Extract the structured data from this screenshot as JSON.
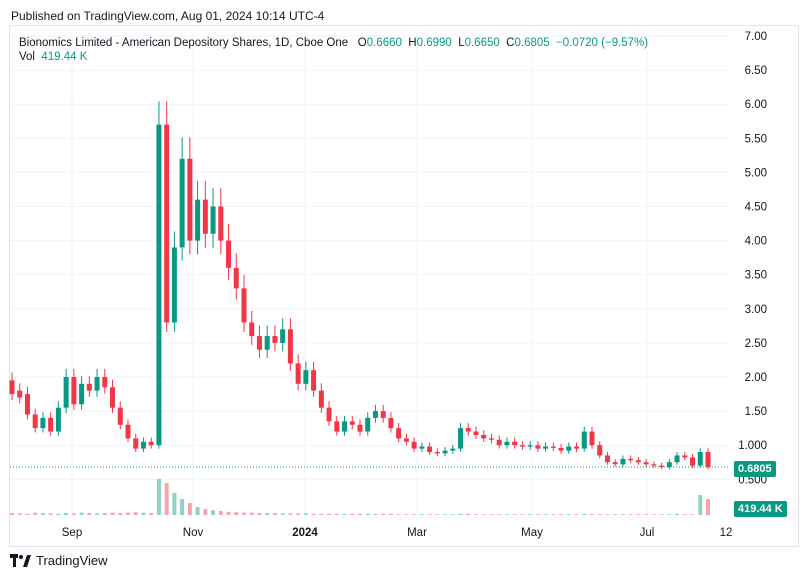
{
  "header": {
    "published": "Published on TradingView.com, Aug 01, 2024 10:14 UTC-4"
  },
  "legend": {
    "symbol": "Bionomics Limited - American Depository Shares, 1D, Cboe One",
    "o_label": "O",
    "o_value": "0.6660",
    "h_label": "H",
    "h_value": "0.6990",
    "l_label": "L",
    "l_value": "0.6650",
    "c_label": "C",
    "c_value": "0.6805",
    "change": "−0.0720 (−9.57%)",
    "vol_label": "Vol",
    "vol_value": "419.44 K"
  },
  "price_tag": "0.6805",
  "volume_tag": "419.44 K",
  "footer": {
    "brand": "TradingView"
  },
  "colors": {
    "up": "#089981",
    "down": "#f23645",
    "grid": "#f0f3fa",
    "last_price_line": "#089981"
  },
  "chart_data": {
    "type": "candlestick",
    "title": "Bionomics Limited - American Depository Shares, 1D, Cboe One",
    "y_ticks": [
      "7.00",
      "6.50",
      "6.00",
      "5.50",
      "5.00",
      "4.50",
      "4.00",
      "3.50",
      "3.00",
      "2.50",
      "2.00",
      "1.50",
      "1.000",
      "0.500"
    ],
    "ylim": [
      0.0,
      7.0
    ],
    "x_ticks": [
      "Sep",
      "Nov",
      "2024",
      "Mar",
      "May",
      "Jul",
      "12"
    ],
    "last_price": 0.6805,
    "grid": true,
    "series": [
      {
        "name": "Price",
        "segments": [
          [
            1.95,
            1.75
          ],
          [
            1.8,
            1.7
          ],
          [
            1.75,
            1.45
          ],
          [
            1.45,
            1.25
          ],
          [
            1.25,
            1.4
          ],
          [
            1.4,
            1.2
          ],
          [
            1.2,
            1.55
          ],
          [
            1.55,
            2.0
          ],
          [
            2.0,
            1.6
          ],
          [
            1.6,
            1.9
          ],
          [
            1.9,
            1.8
          ],
          [
            1.8,
            2.0
          ],
          [
            2.0,
            1.85
          ],
          [
            1.85,
            1.55
          ],
          [
            1.55,
            1.3
          ],
          [
            1.3,
            1.1
          ],
          [
            1.1,
            0.95
          ],
          [
            0.95,
            1.05
          ],
          [
            1.05,
            1.0
          ],
          [
            1.0,
            5.7
          ],
          [
            5.7,
            2.8
          ],
          [
            2.8,
            3.9
          ],
          [
            3.9,
            5.2
          ],
          [
            5.2,
            4.0
          ],
          [
            4.0,
            4.6
          ],
          [
            4.6,
            4.1
          ],
          [
            4.1,
            4.5
          ],
          [
            4.5,
            4.0
          ],
          [
            4.0,
            3.6
          ],
          [
            3.6,
            3.3
          ],
          [
            3.3,
            2.8
          ],
          [
            2.8,
            2.6
          ],
          [
            2.6,
            2.4
          ],
          [
            2.4,
            2.6
          ],
          [
            2.6,
            2.5
          ],
          [
            2.5,
            2.7
          ],
          [
            2.7,
            2.2
          ],
          [
            2.2,
            1.9
          ],
          [
            1.9,
            2.1
          ],
          [
            2.1,
            1.8
          ],
          [
            1.8,
            1.55
          ],
          [
            1.55,
            1.35
          ],
          [
            1.35,
            1.2
          ],
          [
            1.2,
            1.35
          ],
          [
            1.35,
            1.3
          ],
          [
            1.3,
            1.2
          ],
          [
            1.2,
            1.4
          ],
          [
            1.4,
            1.5
          ],
          [
            1.5,
            1.4
          ],
          [
            1.4,
            1.25
          ],
          [
            1.25,
            1.1
          ],
          [
            1.1,
            1.05
          ],
          [
            1.05,
            0.95
          ],
          [
            0.95,
            0.98
          ],
          [
            0.98,
            0.9
          ],
          [
            0.9,
            0.88
          ],
          [
            0.88,
            0.92
          ],
          [
            0.92,
            0.95
          ],
          [
            0.95,
            1.25
          ],
          [
            1.25,
            1.2
          ],
          [
            1.2,
            1.15
          ],
          [
            1.15,
            1.1
          ],
          [
            1.1,
            1.08
          ],
          [
            1.08,
            1.0
          ],
          [
            1.0,
            1.05
          ],
          [
            1.05,
            1.0
          ],
          [
            1.0,
            0.98
          ],
          [
            0.98,
            1.0
          ],
          [
            1.0,
            0.95
          ],
          [
            0.95,
            0.98
          ],
          [
            0.98,
            0.96
          ],
          [
            0.96,
            0.92
          ],
          [
            0.92,
            0.98
          ],
          [
            0.98,
            0.95
          ],
          [
            0.95,
            1.2
          ],
          [
            1.2,
            1.0
          ],
          [
            1.0,
            0.85
          ],
          [
            0.85,
            0.75
          ],
          [
            0.75,
            0.72
          ],
          [
            0.72,
            0.8
          ],
          [
            0.8,
            0.78
          ],
          [
            0.78,
            0.75
          ],
          [
            0.75,
            0.72
          ],
          [
            0.72,
            0.7
          ],
          [
            0.7,
            0.68
          ],
          [
            0.68,
            0.75
          ],
          [
            0.75,
            0.85
          ],
          [
            0.85,
            0.82
          ],
          [
            0.82,
            0.7
          ],
          [
            0.7,
            0.9
          ],
          [
            0.9,
            0.68
          ]
        ]
      },
      {
        "name": "Volume",
        "values": [
          0.05,
          0.04,
          0.03,
          0.06,
          0.05,
          0.04,
          0.03,
          0.05,
          0.04,
          0.06,
          0.05,
          0.04,
          0.05,
          0.06,
          0.05,
          0.06,
          0.07,
          0.06,
          0.05,
          0.9,
          0.8,
          0.55,
          0.4,
          0.3,
          0.2,
          0.15,
          0.12,
          0.1,
          0.08,
          0.07,
          0.06,
          0.06,
          0.05,
          0.05,
          0.05,
          0.04,
          0.04,
          0.04,
          0.04,
          0.03,
          0.03,
          0.03,
          0.03,
          0.03,
          0.03,
          0.03,
          0.03,
          0.03,
          0.03,
          0.03,
          0.02,
          0.02,
          0.02,
          0.02,
          0.02,
          0.02,
          0.02,
          0.02,
          0.03,
          0.03,
          0.02,
          0.02,
          0.02,
          0.02,
          0.02,
          0.02,
          0.02,
          0.02,
          0.02,
          0.02,
          0.02,
          0.02,
          0.02,
          0.02,
          0.03,
          0.02,
          0.02,
          0.02,
          0.02,
          0.02,
          0.02,
          0.02,
          0.02,
          0.02,
          0.02,
          0.02,
          0.03,
          0.02,
          0.02,
          0.5,
          0.4
        ]
      }
    ]
  }
}
